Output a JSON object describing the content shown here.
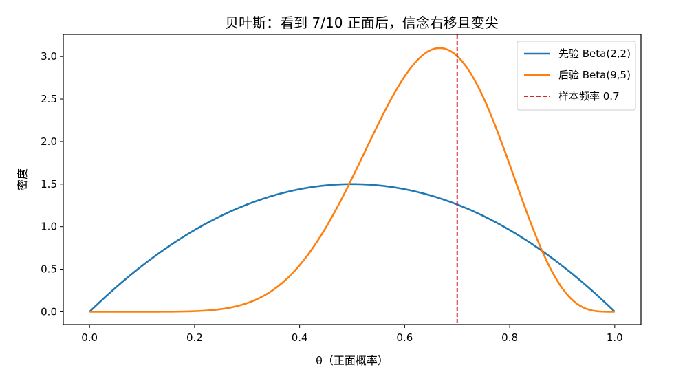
{
  "chart_data": {
    "type": "line",
    "title": "贝叶斯：看到 7/10 正面后，信念右移且变尖",
    "xlabel": "θ（正面概率）",
    "ylabel": "密度",
    "xlim": [
      -0.05,
      1.05
    ],
    "ylim": [
      -0.15,
      3.26
    ],
    "xticks": [
      0.0,
      0.2,
      0.4,
      0.6,
      0.8,
      1.0
    ],
    "xtick_labels": [
      "0.0",
      "0.2",
      "0.4",
      "0.6",
      "0.8",
      "1.0"
    ],
    "yticks": [
      0.0,
      0.5,
      1.0,
      1.5,
      2.0,
      2.5,
      3.0
    ],
    "ytick_labels": [
      "0.0",
      "0.5",
      "1.0",
      "1.5",
      "2.0",
      "2.5",
      "3.0"
    ],
    "grid": false,
    "legend_position": "top-right",
    "series": [
      {
        "name": "先验 Beta(2,2)",
        "dist": "beta",
        "a": 2,
        "b": 2,
        "color": "#1f77b4",
        "style": "solid"
      },
      {
        "name": "后验 Beta(9,5)",
        "dist": "beta",
        "a": 9,
        "b": 5,
        "color": "#ff7f0e",
        "style": "solid"
      }
    ],
    "vlines": [
      {
        "name": "样本频率 0.7",
        "x": 0.7,
        "color": "#d62728",
        "style": "dashed"
      }
    ]
  }
}
